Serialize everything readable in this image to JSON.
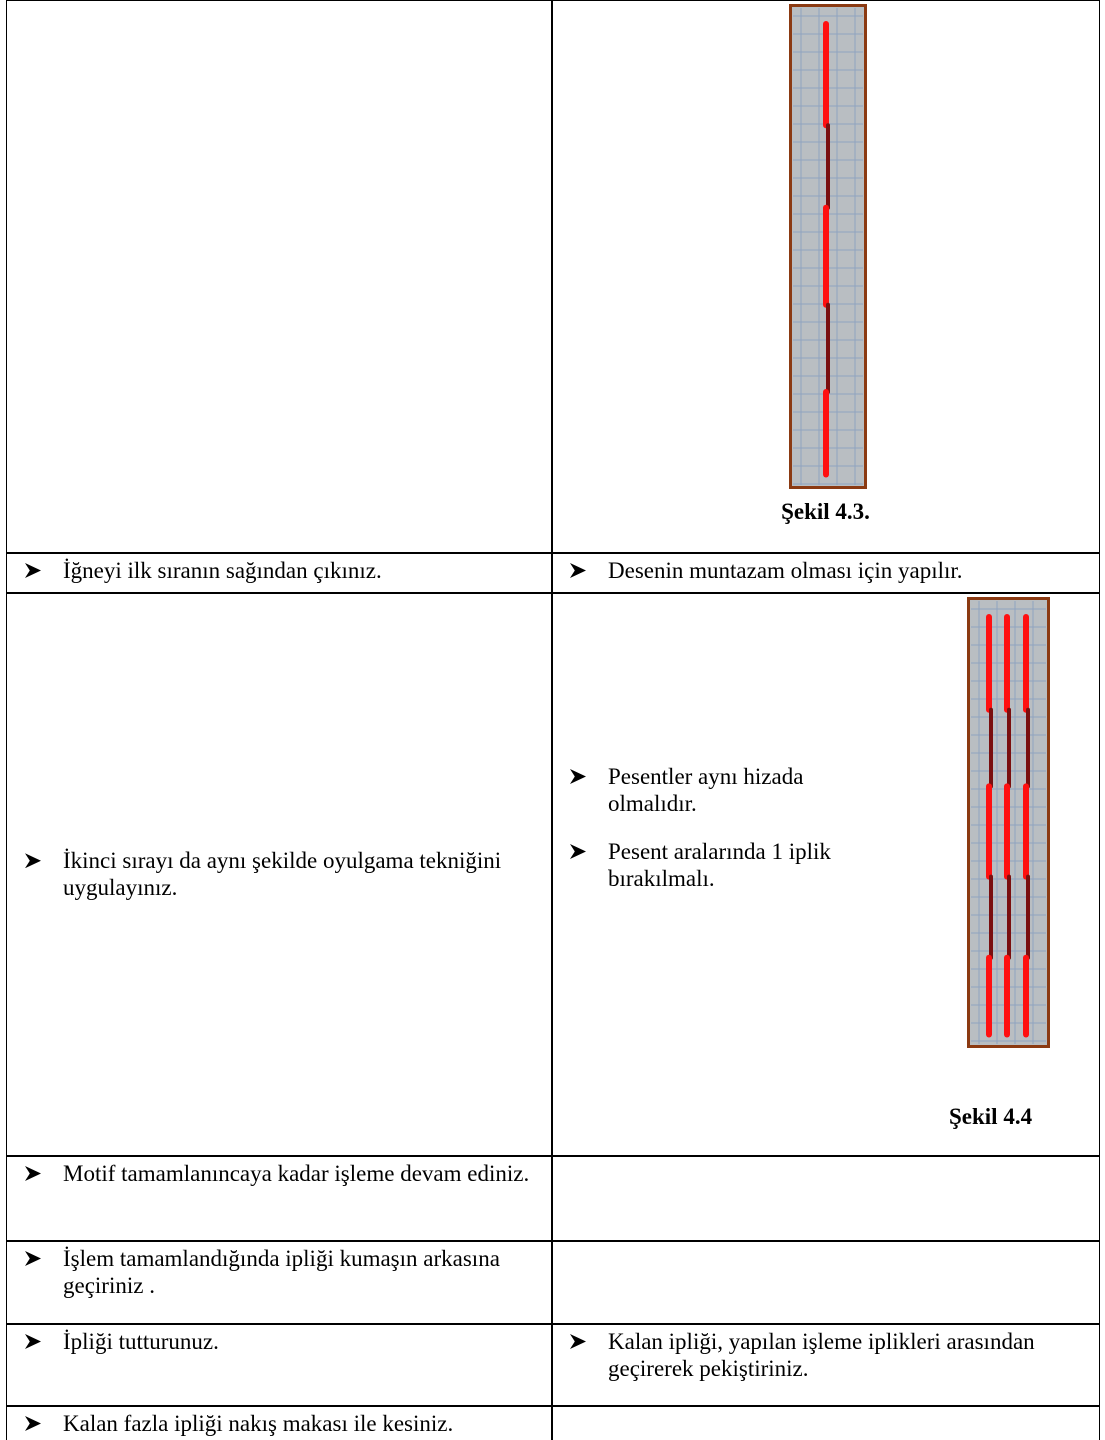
{
  "table": {
    "rows": [
      {
        "caption": "Şekil 4.3."
      },
      {
        "left": [
          "İğneyi ilk sıranın sağından çıkınız."
        ],
        "right": [
          "Desenin muntazam olması için yapılır."
        ]
      },
      {
        "left": [
          "İkinci sırayı da aynı şekilde oyulgama tekniğini uygulayınız."
        ],
        "right": [
          "Pesentler aynı hizada olmalıdır.",
          "Pesent aralarında 1 iplik bırakılmalı."
        ],
        "caption": "Şekil 4.4"
      },
      {
        "left": [
          "Motif tamamlanıncaya kadar işleme devam ediniz."
        ]
      },
      {
        "left": [
          "İşlem tamamlandığında ipliği kumaşın arkasına geçiriniz ."
        ]
      },
      {
        "left": [
          "İpliği tutturunuz."
        ],
        "right": [
          "Kalan ipliği, yapılan işleme iplikleri arasından geçirerek pekiştiriniz."
        ]
      },
      {
        "left": [
          "Kalan fazla ipliği nakış makası ile kesiniz."
        ]
      }
    ]
  }
}
